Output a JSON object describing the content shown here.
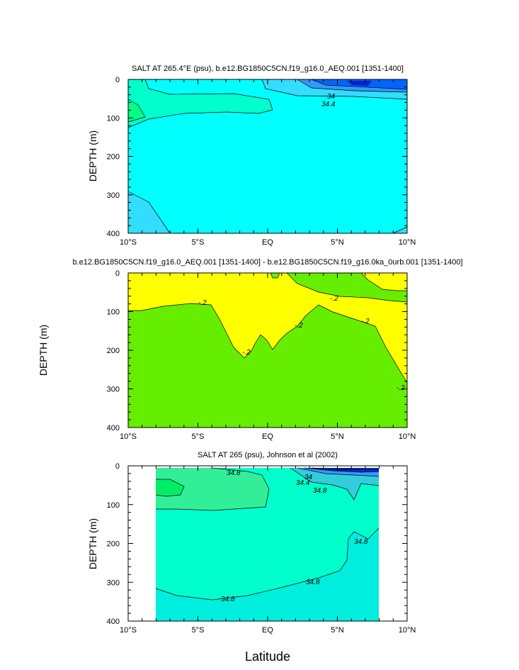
{
  "chart_data": [
    {
      "type": "contour",
      "title": "SALT AT 265.4°E (psu), b.e12.BG1850C5CN.f19_g16.0_AEQ.001 [1351-1400]",
      "xlabel": "",
      "ylabel": "DEPTH (m)",
      "xlim": [
        -10,
        10
      ],
      "ylim": [
        400,
        0
      ],
      "xticks": [
        "10°S",
        "5°S",
        "EQ",
        "5°N",
        "10°N"
      ],
      "yticks": [
        "0",
        "100",
        "200",
        "300",
        "400"
      ],
      "contour_labels": [
        {
          "text": "34",
          "lat": 4.5,
          "depth": 45
        },
        {
          "text": "34.4",
          "lat": 4.4,
          "depth": 65
        }
      ],
      "colors": {
        "background": "#00ffff",
        "mid": "#00ffcc",
        "green": "#00ff88",
        "light_blue": "#33ddff",
        "blue": "#3399ff",
        "deep_blue": "#0044ee",
        "dark": "#0022cc"
      }
    },
    {
      "type": "contour",
      "title": "b.e12.BG1850C5CN.f19_g16.0_AEQ.001 [1351-1400] - b.e12.BG1850C5CN.f19_g16.0ka_0urb.001 [1351-1400]",
      "xlabel": "",
      "ylabel": "DEPTH (m)",
      "xlim": [
        -10,
        10
      ],
      "ylim": [
        400,
        0
      ],
      "xticks": [
        "10°S",
        "5°S",
        "EQ",
        "5°N",
        "10°N"
      ],
      "yticks": [
        "0",
        "100",
        "200",
        "300",
        "400"
      ],
      "contour_labels": [
        {
          "text": "-.2",
          "lat": -4.7,
          "depth": 75
        },
        {
          "text": "-.2",
          "lat": -1.5,
          "depth": 205
        },
        {
          "text": "-.2",
          "lat": 2.2,
          "depth": 130
        },
        {
          "text": "-.2",
          "lat": 4.7,
          "depth": 65
        },
        {
          "text": "-.2",
          "lat": 7.0,
          "depth": 120
        },
        {
          "text": "-.2",
          "lat": 9.5,
          "depth": 290
        }
      ],
      "colors": {
        "yellow": "#ffff00",
        "green": "#66ee00"
      }
    },
    {
      "type": "contour",
      "title": "SALT AT 265 (psu), Johnson et al (2002)",
      "xlabel": "Latitude",
      "ylabel": "DEPTH (m)",
      "xlim": [
        -10,
        10
      ],
      "ylim": [
        400,
        0
      ],
      "xticks": [
        "10°S",
        "5°S",
        "EQ",
        "5°N",
        "10°N"
      ],
      "yticks": [
        "0",
        "100",
        "200",
        "300",
        "400"
      ],
      "data_extent": [
        -8,
        8
      ],
      "contour_labels": [
        {
          "text": "34.8",
          "lat": -2.5,
          "depth": 18
        },
        {
          "text": "34",
          "lat": 2.8,
          "depth": 20
        },
        {
          "text": "34.4",
          "lat": 2.5,
          "depth": 38
        },
        {
          "text": "34.8",
          "lat": 3.7,
          "depth": 62
        },
        {
          "text": "34.8",
          "lat": 6.7,
          "depth": 190
        },
        {
          "text": "34.8",
          "lat": 3.2,
          "depth": 290
        },
        {
          "text": "34.8",
          "lat": -2.8,
          "depth": 345
        }
      ],
      "colors": {
        "main": "#00ffcc",
        "lower": "#00eedd",
        "green": "#00ee66",
        "light": "#33ee99",
        "deep": "#0033cc",
        "dark": "#0022bb"
      }
    }
  ]
}
